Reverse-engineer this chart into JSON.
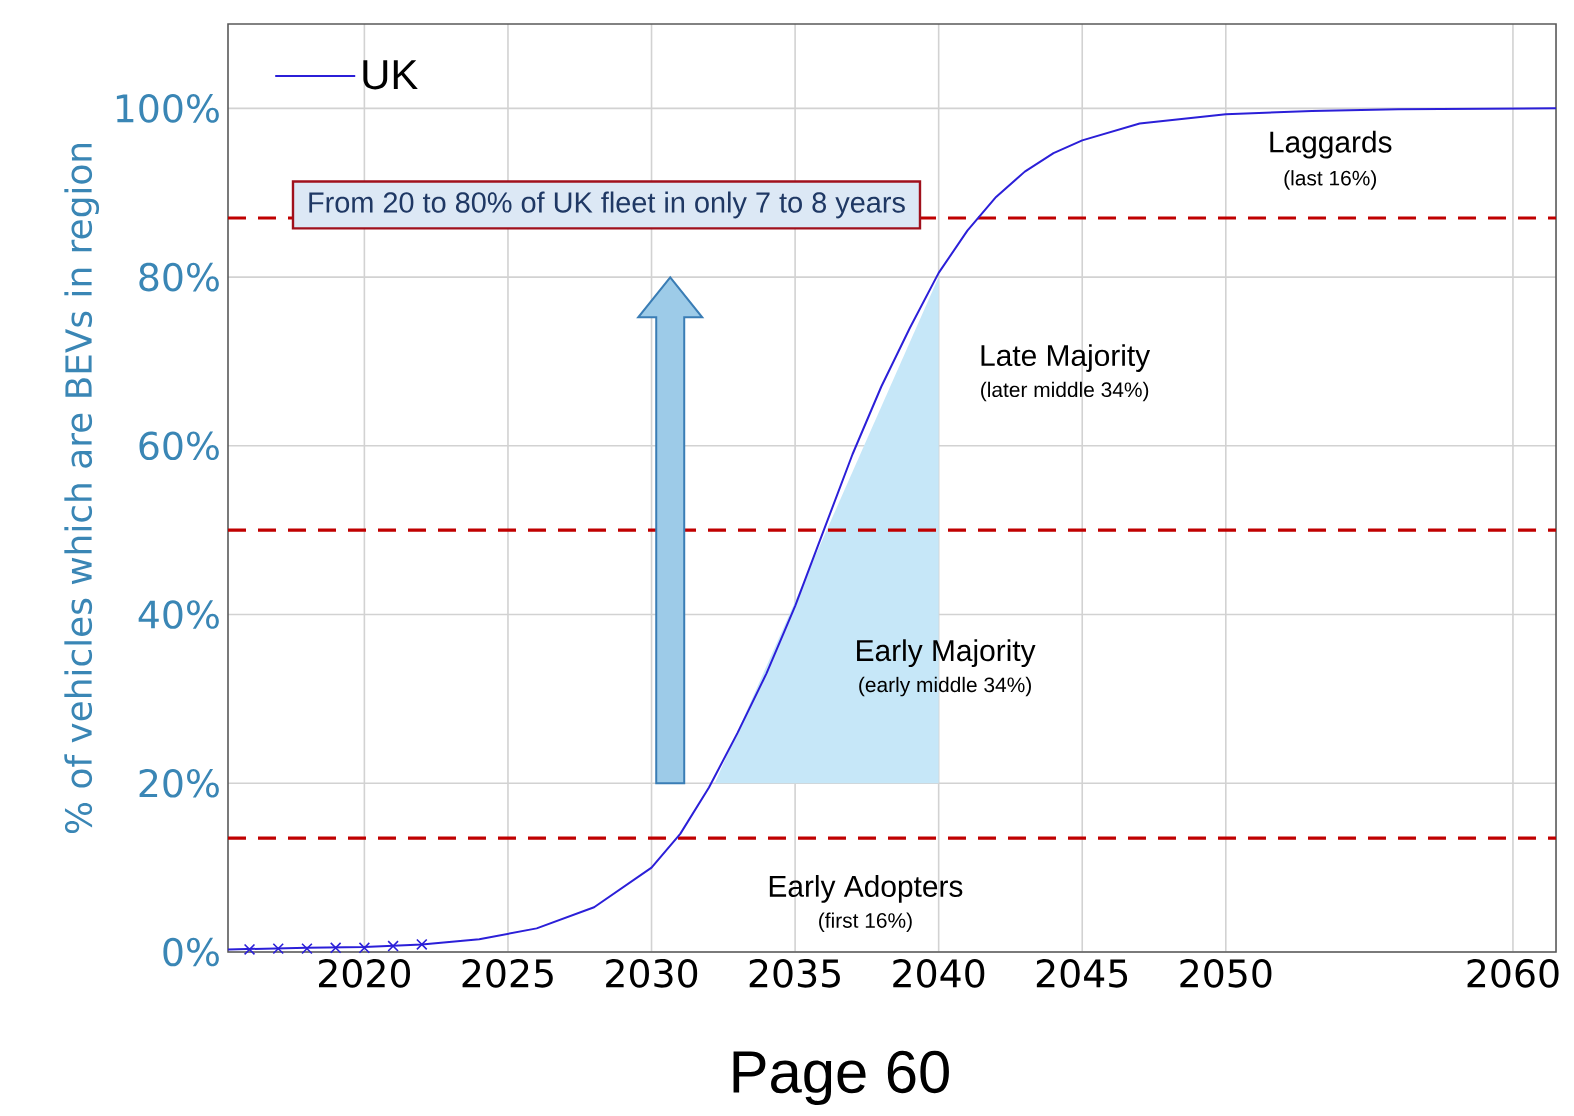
{
  "chart_data": {
    "type": "line",
    "ylabel": "% of vehicles which are BEVs in region",
    "xlim": [
      2015.25,
      2061.5
    ],
    "ylim": [
      0,
      110
    ],
    "xticks": [
      2020,
      2025,
      2030,
      2035,
      2040,
      2045,
      2050,
      2060
    ],
    "yticks": [
      {
        "value": 0,
        "label": "0%"
      },
      {
        "value": 20,
        "label": "20%"
      },
      {
        "value": 40,
        "label": "40%"
      },
      {
        "value": 60,
        "label": "60%"
      },
      {
        "value": 80,
        "label": "80%"
      },
      {
        "value": 100,
        "label": "100%"
      }
    ],
    "grid": true,
    "legend": "top left",
    "marker": "none",
    "line_style": "solid",
    "series": [
      {
        "name": "UK",
        "color": "#2b1fd8",
        "x": [
          2015.25,
          2018,
          2020,
          2022,
          2024,
          2026,
          2028,
          2030,
          2031,
          2032,
          2033,
          2034,
          2035,
          2036,
          2037,
          2038,
          2039,
          2040,
          2041,
          2042,
          2043,
          2044,
          2045,
          2047,
          2050,
          2053,
          2056,
          2061.5
        ],
        "values": [
          0.3,
          0.5,
          0.6,
          0.9,
          1.5,
          2.8,
          5.3,
          10,
          14,
          19.5,
          26,
          33,
          41,
          50,
          59,
          67,
          74,
          80.5,
          85.5,
          89.5,
          92.5,
          94.7,
          96.2,
          98.2,
          99.3,
          99.7,
          99.9,
          100
        ]
      },
      {
        "type": "scatter",
        "marker": "cross",
        "color": "#2b1fd8",
        "x": [
          2016,
          2017,
          2018,
          2019,
          2020,
          2021,
          2022
        ],
        "values": [
          0.3,
          0.4,
          0.4,
          0.5,
          0.5,
          0.7,
          0.9
        ]
      },
      {
        "type": "area",
        "color": "#c6e7f8",
        "x": [
          2032.2,
          2040
        ],
        "values": [
          20,
          80
        ]
      }
    ],
    "ref_lines": [
      {
        "axis": "y",
        "value": 13.5,
        "color": "#c00000",
        "line_style": "dashed"
      },
      {
        "axis": "y",
        "value": 50,
        "color": "#c00000",
        "line_style": "dashed"
      },
      {
        "axis": "y",
        "value": 87,
        "color": "#c00000",
        "line_style": "dashed"
      }
    ],
    "annotations": [
      "From 20 to 80% of UK fleet in only 7 to 8 years",
      "Laggards",
      "(last 16%)",
      "Late Majority",
      "(later middle 34%)",
      "Early Majority",
      "(early middle 34%)",
      "Early Adopters",
      "(first 16%)",
      "Page 60"
    ]
  }
}
